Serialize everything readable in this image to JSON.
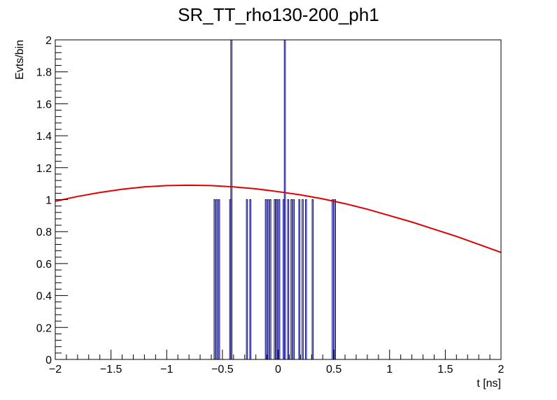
{
  "chart_data": {
    "type": "bar",
    "title": "SR_TT_rho130-200_ph1",
    "xlabel": "t [ns]",
    "ylabel": "Evts/bin",
    "xlim": [
      -2,
      2
    ],
    "ylim": [
      0,
      2
    ],
    "grid": false,
    "x_ticks": [
      -2,
      -1.5,
      -1,
      -0.5,
      0,
      0.5,
      1,
      1.5,
      2
    ],
    "x_tick_labels": [
      "−2",
      "−1.5",
      "−1",
      "−0.5",
      "0",
      "0.5",
      "1",
      "1.5",
      "2"
    ],
    "y_ticks": [
      0,
      0.2,
      0.4,
      0.6,
      0.8,
      1,
      1.2,
      1.4,
      1.6,
      1.8,
      2
    ],
    "y_tick_labels": [
      "0",
      "0.2",
      "0.4",
      "0.6",
      "0.8",
      "1",
      "1.2",
      "1.4",
      "1.6",
      "1.8",
      "2"
    ],
    "histogram": {
      "bin_width": 0.01,
      "color": "#000080",
      "bins": [
        {
          "x": -0.57,
          "y": 1
        },
        {
          "x": -0.55,
          "y": 1
        },
        {
          "x": -0.53,
          "y": 1
        },
        {
          "x": -0.43,
          "y": 1
        },
        {
          "x": -0.42,
          "y": 2
        },
        {
          "x": -0.28,
          "y": 1
        },
        {
          "x": -0.25,
          "y": 1
        },
        {
          "x": -0.11,
          "y": 1
        },
        {
          "x": -0.09,
          "y": 1
        },
        {
          "x": -0.07,
          "y": 1
        },
        {
          "x": -0.03,
          "y": 1
        },
        {
          "x": -0.02,
          "y": 1
        },
        {
          "x": -0.01,
          "y": 1
        },
        {
          "x": 0.01,
          "y": 1
        },
        {
          "x": 0.05,
          "y": 1
        },
        {
          "x": 0.06,
          "y": 2
        },
        {
          "x": 0.09,
          "y": 1
        },
        {
          "x": 0.12,
          "y": 1
        },
        {
          "x": 0.14,
          "y": 1
        },
        {
          "x": 0.19,
          "y": 1
        },
        {
          "x": 0.22,
          "y": 1
        },
        {
          "x": 0.25,
          "y": 1
        },
        {
          "x": 0.31,
          "y": 1
        },
        {
          "x": 0.49,
          "y": 1
        },
        {
          "x": 0.51,
          "y": 1
        }
      ]
    },
    "fit_curve": {
      "color": "#e00000",
      "x": [
        -2,
        -1.8,
        -1.6,
        -1.4,
        -1.2,
        -1.0,
        -0.8,
        -0.6,
        -0.4,
        -0.2,
        0,
        0.2,
        0.4,
        0.6,
        0.8,
        1.0,
        1.2,
        1.4,
        1.6,
        1.8,
        2.0
      ],
      "y": [
        0.99,
        1.02,
        1.045,
        1.065,
        1.08,
        1.088,
        1.09,
        1.088,
        1.08,
        1.068,
        1.05,
        1.03,
        1.005,
        0.975,
        0.94,
        0.9,
        0.86,
        0.815,
        0.77,
        0.72,
        0.67
      ]
    }
  }
}
